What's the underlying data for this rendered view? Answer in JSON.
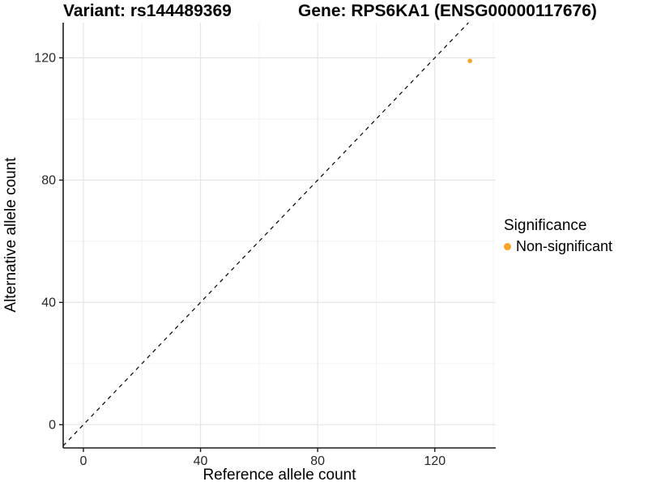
{
  "chart_data": {
    "type": "scatter",
    "title_left": "Variant: rs144489369",
    "title_right": "Gene: RPS6KA1 (ENSG00000117676)",
    "xlabel": "Reference allele count",
    "ylabel": "Alternative allele count",
    "x_ticks": [
      0,
      40,
      80,
      120
    ],
    "y_ticks": [
      0,
      40,
      80,
      120
    ],
    "x_minor_gridlines": [
      20,
      60,
      100,
      140
    ],
    "y_minor_gridlines": [
      20,
      60,
      100
    ],
    "xlim": [
      -6.9,
      140.8
    ],
    "ylim": [
      -7.6,
      131.5
    ],
    "grid": "major and minor, light gray on white",
    "points": [
      {
        "x": 132,
        "y": 119,
        "significance": "Non-significant"
      }
    ],
    "point_color": "#F9A32B",
    "point_radius": 2.8,
    "abline": {
      "slope": 1,
      "intercept": 0,
      "linetype": "dashed",
      "color": "#000000"
    },
    "legend": {
      "title": "Significance",
      "position": "right",
      "entries": [
        {
          "label": "Non-significant",
          "color": "#F9A32B"
        }
      ]
    },
    "colors": {
      "axis_line": "#1A1A1A",
      "tick_label": "#262626",
      "grid_major": "#E5E5E5",
      "grid_minor": "#F2F2F2"
    }
  }
}
